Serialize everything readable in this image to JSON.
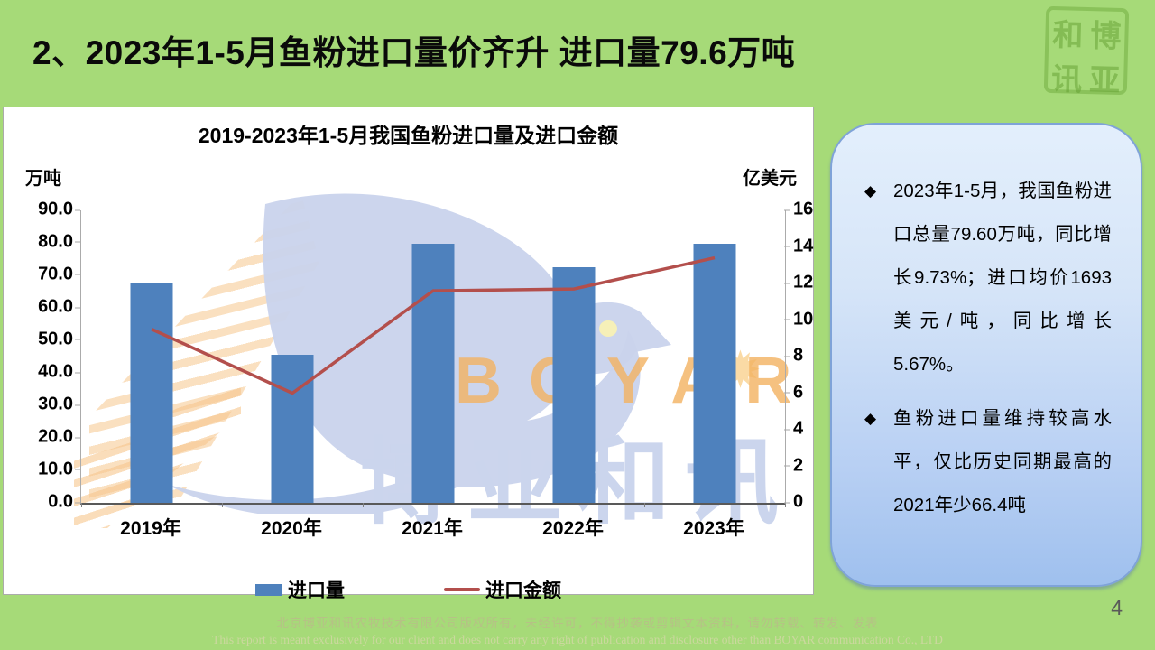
{
  "slide": {
    "title": "2、2023年1-5月鱼粉进口量价齐升 进口量79.6万吨",
    "page_number": "4"
  },
  "logo": {
    "name": "boyar-seal",
    "chars": [
      "和",
      "博",
      "讯",
      "亚"
    ]
  },
  "chart_data": {
    "type": "bar",
    "combo": "bar+line",
    "title": "2019-2023年1-5月我国鱼粉进口量及进口金额",
    "categories": [
      "2019年",
      "2020年",
      "2021年",
      "2022年",
      "2023年"
    ],
    "series": [
      {
        "name": "进口量",
        "type": "bar",
        "axis": "left",
        "unit": "万吨",
        "color": "#4E81BD",
        "values": [
          67.6,
          45.5,
          79.61,
          72.5,
          79.6
        ]
      },
      {
        "name": "进口金额",
        "type": "line",
        "axis": "right",
        "unit": "亿美元",
        "color": "#B34F4C",
        "values": [
          9.5,
          6.0,
          11.6,
          11.7,
          13.4
        ]
      }
    ],
    "left_axis": {
      "label": "万吨",
      "min": 0,
      "max": 90,
      "step": 10,
      "tick_decimals": 1
    },
    "right_axis": {
      "label": "亿美元",
      "min": 0,
      "max": 16,
      "step": 2,
      "tick_decimals": 0
    },
    "legend_position": "bottom",
    "grid": false
  },
  "watermark": {
    "brand_en": "BOYAR",
    "brand_cn": "博亚和讯",
    "star": "✹"
  },
  "infobox": {
    "bullets": [
      {
        "marker": "◆",
        "text": "2023年1-5月，我国鱼粉进口总量79.60万吨，同比增长9.73%；进口均价1693美元/吨，同比增长5.67%。"
      },
      {
        "marker": "◆",
        "text": "鱼粉进口量维持较高水平，仅比历史同期最高的2021年少66.4吨"
      }
    ]
  },
  "footer": {
    "line1_cn": "北京博亚和讯农牧技术有限公司版权所有，未经许可，不得抄袭或剪辑文本资料，请勿转载、转发、发表",
    "line2_en": "This report is meant exclusively for our client and does not carry any right of publication and disclosure other than BOYAR communication Co., LTD"
  }
}
